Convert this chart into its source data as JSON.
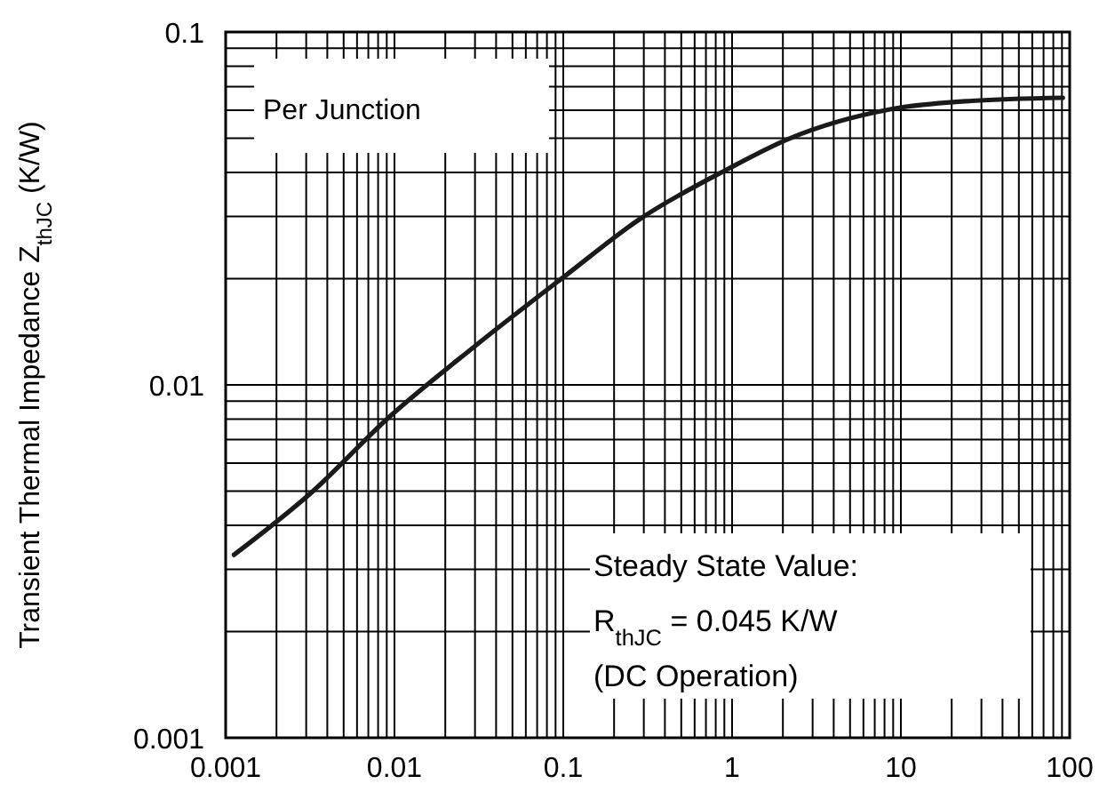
{
  "chart_data": {
    "type": "line",
    "ylabel": "Transient Thermal Impedance Z$_{thJC}$ (K/W)",
    "annotations": [
      "Per Junction",
      "Steady State Value:",
      "R$_{thJC}$ = 0.045 K/W",
      "(DC Operation)"
    ],
    "x": [
      0.00112,
      0.00326,
      0.0092,
      0.0295,
      0.103,
      0.284,
      0.953,
      2.14,
      8.5,
      26.2,
      91
    ],
    "series": [
      {
        "color": "#1a1a1a",
        "values": [
          0.0033,
          0.00498,
          0.00807,
          0.0128,
          0.0204,
          0.0295,
          0.041,
          0.0497,
          0.0603,
          0.0638,
          0.0651
        ]
      }
    ],
    "xlim": [
      0.001,
      100
    ],
    "ylim": [
      0.001,
      0.1
    ],
    "xticks": [
      0.001,
      0.01,
      0.1,
      1,
      10,
      100
    ],
    "yticks": [
      0.001,
      0.01,
      0.1
    ],
    "log": "xy",
    "grid": true,
    "marker": "none",
    "line_style": "solid"
  }
}
